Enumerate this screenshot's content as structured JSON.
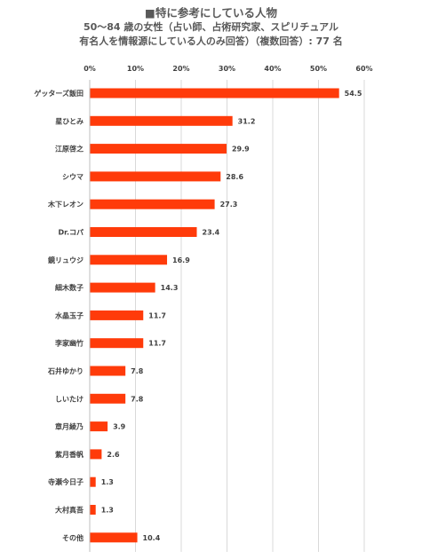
{
  "header": {
    "title": "■特に参考にしている人物",
    "subtitle_line1": "50～84 歳の女性（占い師、占術研究家、スピリチュアル",
    "subtitle_line2": "有名人を情報源にしている人のみ回答）（複数回答）: 77 名"
  },
  "colors": {
    "bar": "#FF3B0A",
    "grid": "#D9D9D9",
    "text": "#404040"
  },
  "chart_data": {
    "type": "bar",
    "orientation": "horizontal",
    "title": "■特に参考にしている人物",
    "categories": [
      "ゲッターズ飯田",
      "星ひとみ",
      "江原啓之",
      "シウマ",
      "木下レオン",
      "Dr.コパ",
      "鏡リュウジ",
      "細木数子",
      "水晶玉子",
      "李家幽竹",
      "石井ゆかり",
      "しいたけ",
      "章月綾乃",
      "紫月香帆",
      "寺瀬今日子",
      "大村真吾",
      "その他"
    ],
    "values": [
      54.5,
      31.2,
      29.9,
      28.6,
      27.3,
      23.4,
      16.9,
      14.3,
      11.7,
      11.7,
      7.8,
      7.8,
      3.9,
      2.6,
      1.3,
      1.3,
      10.4
    ],
    "value_labels": [
      "54.5",
      "31.2",
      "29.9",
      "28.6",
      "27.3",
      "23.4",
      "16.9",
      "14.3",
      "11.7",
      "11.7",
      "7.8",
      "7.8",
      "3.9",
      "2.6",
      "1.3",
      "1.3",
      "10.4"
    ],
    "xlim": [
      0,
      60
    ],
    "xticks": [
      0,
      10,
      20,
      30,
      40,
      50,
      60
    ],
    "xtick_labels": [
      "0%",
      "10%",
      "20%",
      "30%",
      "40%",
      "50%",
      "60%"
    ],
    "axis_position": "top",
    "grid": true
  }
}
